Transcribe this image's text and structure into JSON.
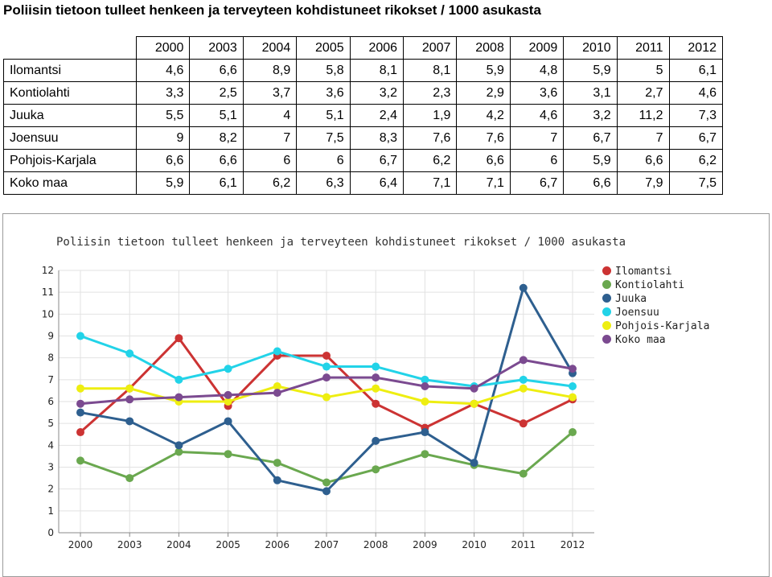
{
  "page_title": "Poliisin tietoon tulleet henkeen ja terveyteen kohdistuneet rikokset / 1000 asukasta",
  "table": {
    "corner": "",
    "years": [
      "2000",
      "2003",
      "2004",
      "2005",
      "2006",
      "2007",
      "2008",
      "2009",
      "2010",
      "2011",
      "2012"
    ],
    "rows": [
      {
        "name": "Ilomantsi",
        "values": [
          "4,6",
          "6,6",
          "8,9",
          "5,8",
          "8,1",
          "8,1",
          "5,9",
          "4,8",
          "5,9",
          "5",
          "6,1"
        ]
      },
      {
        "name": "Kontiolahti",
        "values": [
          "3,3",
          "2,5",
          "3,7",
          "3,6",
          "3,2",
          "2,3",
          "2,9",
          "3,6",
          "3,1",
          "2,7",
          "4,6"
        ]
      },
      {
        "name": "Juuka",
        "values": [
          "5,5",
          "5,1",
          "4",
          "5,1",
          "2,4",
          "1,9",
          "4,2",
          "4,6",
          "3,2",
          "11,2",
          "7,3"
        ]
      },
      {
        "name": "Joensuu",
        "values": [
          "9",
          "8,2",
          "7",
          "7,5",
          "8,3",
          "7,6",
          "7,6",
          "7",
          "6,7",
          "7",
          "6,7"
        ]
      },
      {
        "name": "Pohjois-Karjala",
        "values": [
          "6,6",
          "6,6",
          "6",
          "6",
          "6,7",
          "6,2",
          "6,6",
          "6",
          "5,9",
          "6,6",
          "6,2"
        ]
      },
      {
        "name": "Koko maa",
        "values": [
          "5,9",
          "6,1",
          "6,2",
          "6,3",
          "6,4",
          "7,1",
          "7,1",
          "6,7",
          "6,6",
          "7,9",
          "7,5"
        ]
      }
    ]
  },
  "chart_data": {
    "type": "line",
    "title": "Poliisin tietoon tulleet henkeen ja terveyteen kohdistuneet rikokset / 1000 asukasta",
    "categories": [
      "2000",
      "2003",
      "2004",
      "2005",
      "2006",
      "2007",
      "2008",
      "2009",
      "2010",
      "2011",
      "2012"
    ],
    "ylim": [
      0,
      12
    ],
    "yticks": [
      "0",
      "1",
      "2",
      "3",
      "4",
      "5",
      "6",
      "7",
      "8",
      "9",
      "10",
      "11",
      "12"
    ],
    "grid": true,
    "legend_position": "top-right",
    "series": [
      {
        "name": "Ilomantsi",
        "color": "#cc3333",
        "values": [
          4.6,
          6.6,
          8.9,
          5.8,
          8.1,
          8.1,
          5.9,
          4.8,
          5.9,
          5,
          6.1
        ]
      },
      {
        "name": "Kontiolahti",
        "color": "#6aa84f",
        "values": [
          3.3,
          2.5,
          3.7,
          3.6,
          3.2,
          2.3,
          2.9,
          3.6,
          3.1,
          2.7,
          4.6
        ]
      },
      {
        "name": "Juuka",
        "color": "#2e5f8f",
        "values": [
          5.5,
          5.1,
          4,
          5.1,
          2.4,
          1.9,
          4.2,
          4.6,
          3.2,
          11.2,
          7.3
        ]
      },
      {
        "name": "Joensuu",
        "color": "#22d3e8",
        "values": [
          9,
          8.2,
          7,
          7.5,
          8.3,
          7.6,
          7.6,
          7,
          6.7,
          7,
          6.7
        ]
      },
      {
        "name": "Pohjois-Karjala",
        "color": "#eeee11",
        "values": [
          6.6,
          6.6,
          6,
          6,
          6.7,
          6.2,
          6.6,
          6,
          5.9,
          6.6,
          6.2
        ]
      },
      {
        "name": "Koko maa",
        "color": "#7b4a90",
        "values": [
          5.9,
          6.1,
          6.2,
          6.3,
          6.4,
          7.1,
          7.1,
          6.7,
          6.6,
          7.9,
          7.5
        ]
      }
    ]
  }
}
